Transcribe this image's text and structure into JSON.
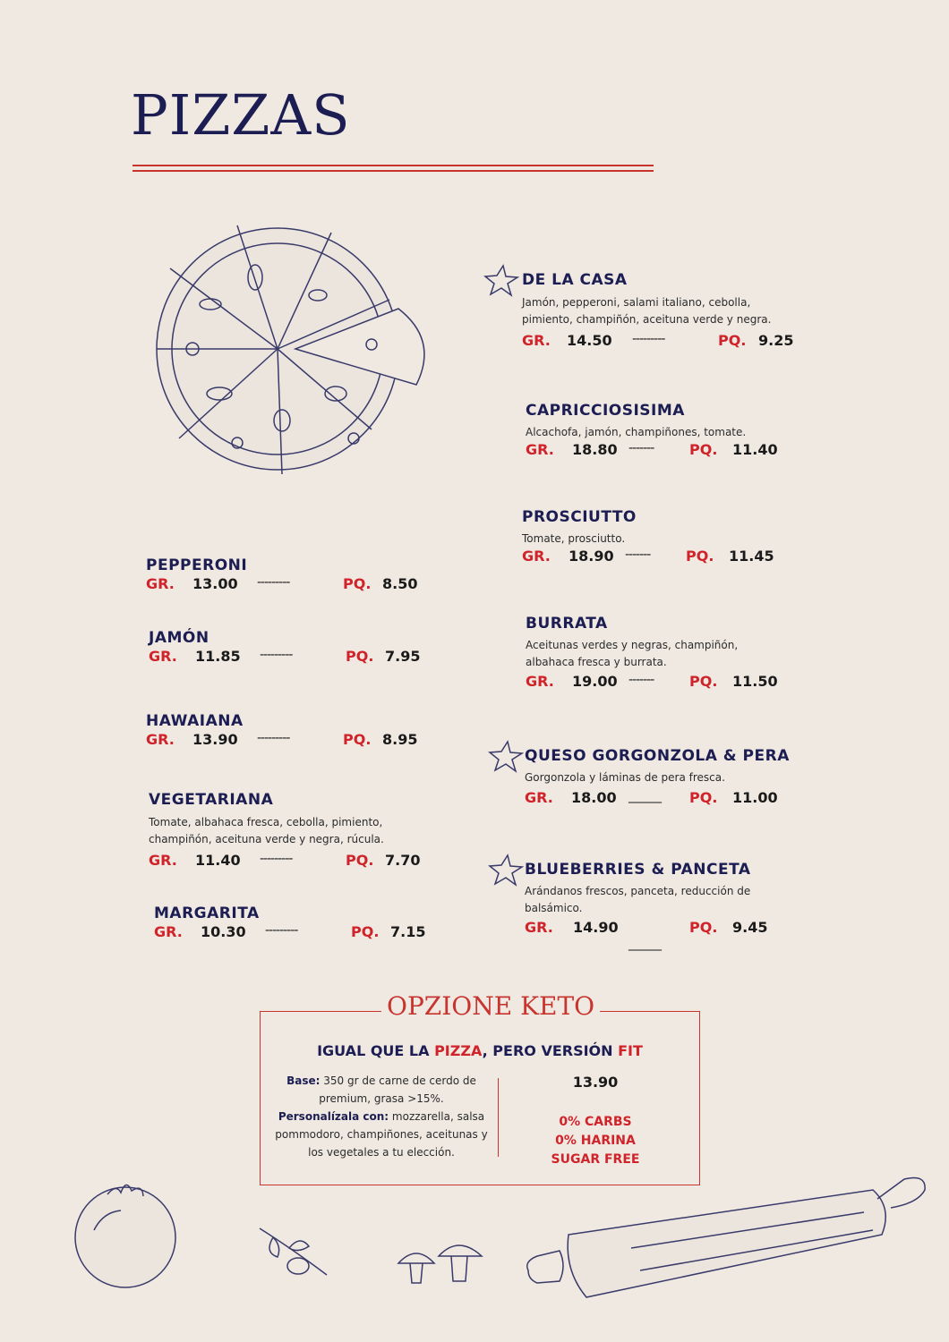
{
  "title": "PIZZAS",
  "labels": {
    "large": "GR.",
    "small": "PQ."
  },
  "left_items": [
    {
      "name": "PEPPERONI",
      "gr": "13.00",
      "pq": "8.50",
      "dash": "---------"
    },
    {
      "name": "JAMÓN",
      "gr": "11.85",
      "pq": "7.95",
      "dash": "---------"
    },
    {
      "name": "HAWAIANA",
      "gr": "13.90",
      "pq": "8.95",
      "dash": "---------"
    },
    {
      "name": "VEGETARIANA",
      "desc1": "Tomate, albahaca fresca, cebolla, pimiento,",
      "desc2": "champiñón, aceituna verde y negra, rúcula.",
      "gr": "11.40",
      "pq": "7.70",
      "dash": "---------"
    },
    {
      "name": "MARGARITA",
      "gr": "10.30",
      "pq": "7.15",
      "dash": "---------"
    }
  ],
  "right_items": [
    {
      "name": "DE LA CASA",
      "desc1": "Jamón, pepperoni, salami italiano, cebolla,",
      "desc2": "pimiento, champiñón, aceituna verde y negra.",
      "gr": "14.50",
      "pq": "9.25",
      "dash": "---------"
    },
    {
      "name": "CAPRICCIOSISIMA",
      "desc1": "Alcachofa, jamón, champiñones, tomate.",
      "gr": "18.80",
      "pq": "11.40",
      "dash": "-------"
    },
    {
      "name": "PROSCIUTTO",
      "desc1": "Tomate, prosciutto.",
      "gr": "18.90",
      "pq": "11.45",
      "dash": "-------"
    },
    {
      "name": "BURRATA",
      "desc1": "Aceitunas verdes y negras, champiñón,",
      "desc2": "albahaca fresca y burrata.",
      "gr": "19.00",
      "pq": "11.50",
      "dash": "-------"
    },
    {
      "name": "QUESO GORGONZOLA & PERA",
      "desc1": "Gorgonzola y láminas de pera fresca.",
      "gr": "18.00",
      "pq": "11.00",
      "dash": "______"
    },
    {
      "name": "BLUEBERRIES & PANCETA",
      "desc1": "Arándanos frescos, panceta, reducción de",
      "desc2": "balsámico.",
      "gr": "14.90",
      "pq": "9.45",
      "dash": "______"
    }
  ],
  "keto": {
    "title": "OPZIONE KETO",
    "sub_a": "IGUAL QUE LA ",
    "sub_b": "PIZZA",
    "sub_c": ", PERO VERSIÓN ",
    "sub_d": "FIT",
    "base_label": "Base:",
    "base_text": " 350 gr de carne de cerdo de premium, grasa >15%.",
    "custom_label": "Personalízala con:",
    "custom_text": " mozzarella, salsa pommodoro, champiñones, aceitunas y los vegetales a tu elección.",
    "price": "13.90",
    "tag1": "0% CARBS",
    "tag2": "0% HARINA",
    "tag3": "SUGAR FREE"
  },
  "colors": {
    "navy": "#1c1d52",
    "red": "#d0232a",
    "paper": "#efe9e2"
  }
}
